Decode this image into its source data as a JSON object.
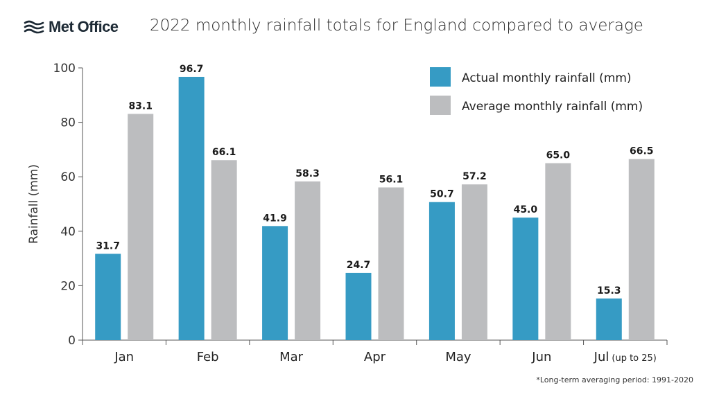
{
  "header": {
    "logo_text": "Met Office",
    "logo_icon": "met-office-wave-icon",
    "title": "2022 monthly rainfall totals for England compared to average"
  },
  "footnote": "*Long-term averaging period: 1991-2020",
  "chart_data": {
    "type": "bar",
    "title": "2022 monthly rainfall totals for England compared to average",
    "xlabel": "",
    "ylabel": "Rainfall (mm)",
    "ylim": [
      0,
      100
    ],
    "yticks": [
      0,
      20,
      40,
      60,
      80,
      100
    ],
    "grid": false,
    "legend_position": "top-right",
    "categories": [
      "Jan",
      "Feb",
      "Mar",
      "Apr",
      "May",
      "Jun",
      "Jul"
    ],
    "category_suffixes": [
      "",
      "",
      "",
      "",
      "",
      "",
      "(up to 25)"
    ],
    "series": [
      {
        "name": "Actual monthly rainfall (mm)",
        "color": "#369bc4",
        "values": [
          31.7,
          96.7,
          41.9,
          24.7,
          50.7,
          45.0,
          15.3
        ],
        "labels": [
          "31.7",
          "96.7",
          "41.9",
          "24.7",
          "50.7",
          "45.0",
          "15.3"
        ]
      },
      {
        "name": "Average monthly rainfall (mm)",
        "color": "#bcbdbf",
        "values": [
          83.1,
          66.1,
          58.3,
          56.1,
          57.2,
          65.0,
          66.5
        ],
        "labels": [
          "83.1",
          "66.1",
          "58.3",
          "56.1",
          "57.2",
          "65.0",
          "66.5"
        ]
      }
    ]
  }
}
